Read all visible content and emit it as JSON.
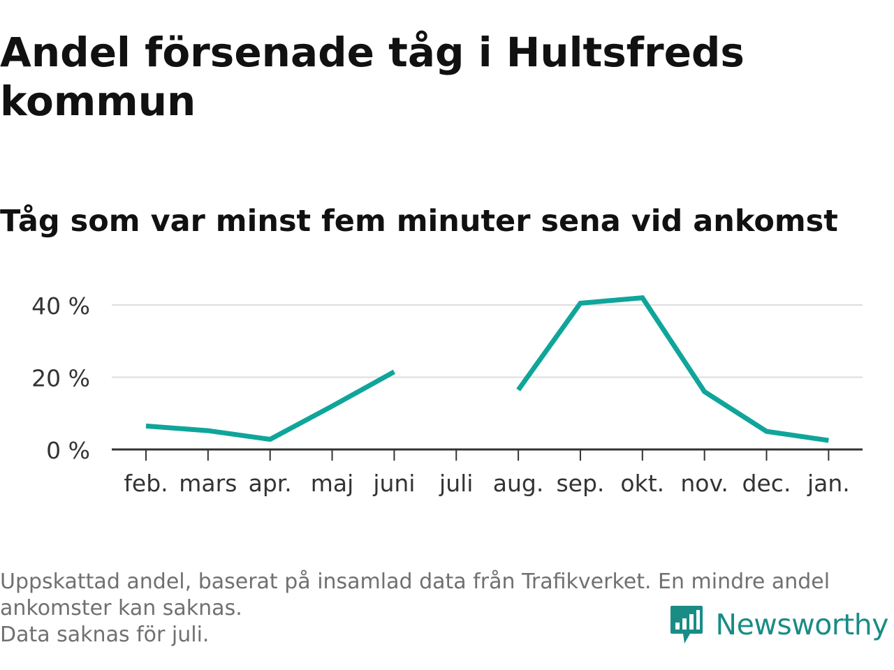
{
  "header": {
    "title": "Andel försenade tåg i Hultsfreds kommun",
    "subtitle": "Tåg som var minst fem minuter sena vid ankomst"
  },
  "chart_data": {
    "type": "line",
    "categories": [
      "feb.",
      "mars",
      "apr.",
      "maj",
      "juni",
      "juli",
      "aug.",
      "sep.",
      "okt.",
      "nov.",
      "dec.",
      "jan."
    ],
    "series": [
      {
        "values": [
          6.5,
          5.2,
          2.8,
          12.0,
          21.5,
          null,
          16.5,
          40.5,
          42.0,
          16.0,
          5.0,
          2.5
        ]
      }
    ],
    "y_ticks": [
      0,
      20,
      40
    ],
    "y_tick_labels": [
      "0 %",
      "20 %",
      "40 %"
    ],
    "ylim": [
      0,
      50
    ],
    "xlabel": "",
    "ylabel": "",
    "grid": true,
    "line_color": "#0fa59a",
    "grid_color": "#dddddd",
    "axis_color": "#333333"
  },
  "footer": {
    "note_line1": "Uppskattad andel, baserat på insamlad data från Trafikverket. En mindre andel ankomster kan saknas.",
    "note_line2": "Data saknas för juli.",
    "brand": "Newsworthy",
    "brand_color": "#1a8c86",
    "logo_icon": "newsworthy-bar-chart-icon"
  }
}
